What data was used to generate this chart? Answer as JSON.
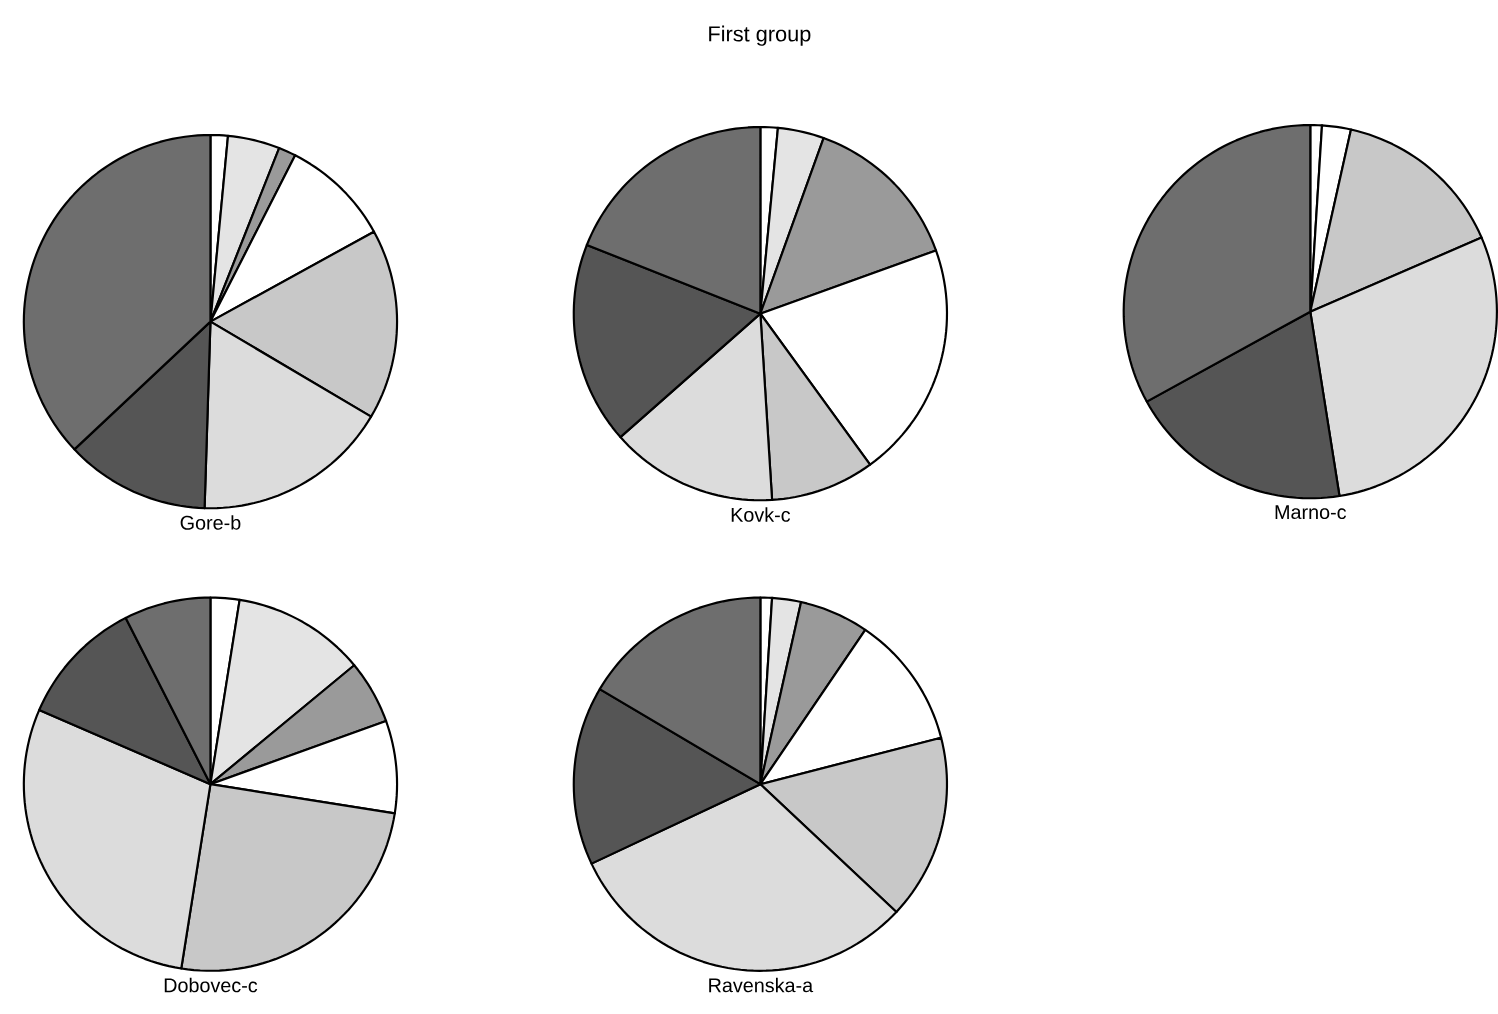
{
  "chart_data": [
    {
      "type": "other",
      "title": "First group"
    },
    {
      "type": "pie",
      "title": "Gore-b",
      "categories": [
        null,
        null,
        null,
        null,
        null,
        null,
        null,
        null
      ],
      "values": [
        1.5,
        4.5,
        1.5,
        9.5,
        16.5,
        17,
        12.5,
        37
      ],
      "colors": [
        "#ffffff",
        "#e4e4e4",
        "#9a9a9a",
        "#ffffff",
        "#c8c8c8",
        "#dcdcdc",
        "#555555",
        "#6e6e6e"
      ]
    },
    {
      "type": "pie",
      "title": "Kovk-c",
      "categories": [
        null,
        null,
        null,
        null,
        null,
        null,
        null,
        null
      ],
      "values": [
        1.5,
        4,
        14,
        20.5,
        9,
        14.5,
        17.5,
        19
      ],
      "colors": [
        "#ffffff",
        "#e4e4e4",
        "#9a9a9a",
        "#ffffff",
        "#c8c8c8",
        "#dcdcdc",
        "#555555",
        "#6e6e6e"
      ]
    },
    {
      "type": "pie",
      "title": "Marno-c",
      "categories": [
        null,
        null,
        null,
        null,
        null,
        null,
        null,
        null
      ],
      "values": [
        1,
        0,
        0,
        2.5,
        15,
        29,
        19.5,
        33
      ],
      "colors": [
        "#ffffff",
        "#e4e4e4",
        "#9a9a9a",
        "#ffffff",
        "#c8c8c8",
        "#dcdcdc",
        "#555555",
        "#6e6e6e"
      ]
    },
    {
      "type": "pie",
      "title": "Dobovec-c",
      "categories": [
        null,
        null,
        null,
        null,
        null,
        null,
        null,
        null
      ],
      "values": [
        2.5,
        11.5,
        5.5,
        8,
        25,
        29,
        11,
        7.5
      ],
      "colors": [
        "#ffffff",
        "#e4e4e4",
        "#9a9a9a",
        "#ffffff",
        "#c8c8c8",
        "#dcdcdc",
        "#555555",
        "#6e6e6e"
      ]
    },
    {
      "type": "pie",
      "title": "Ravenska-a",
      "categories": [
        null,
        null,
        null,
        null,
        null,
        null,
        null,
        null
      ],
      "values": [
        1,
        2.5,
        6,
        11.5,
        16,
        31,
        15.5,
        16.5
      ],
      "colors": [
        "#ffffff",
        "#e4e4e4",
        "#9a9a9a",
        "#ffffff",
        "#c8c8c8",
        "#dcdcdc",
        "#555555",
        "#6e6e6e"
      ]
    }
  ]
}
